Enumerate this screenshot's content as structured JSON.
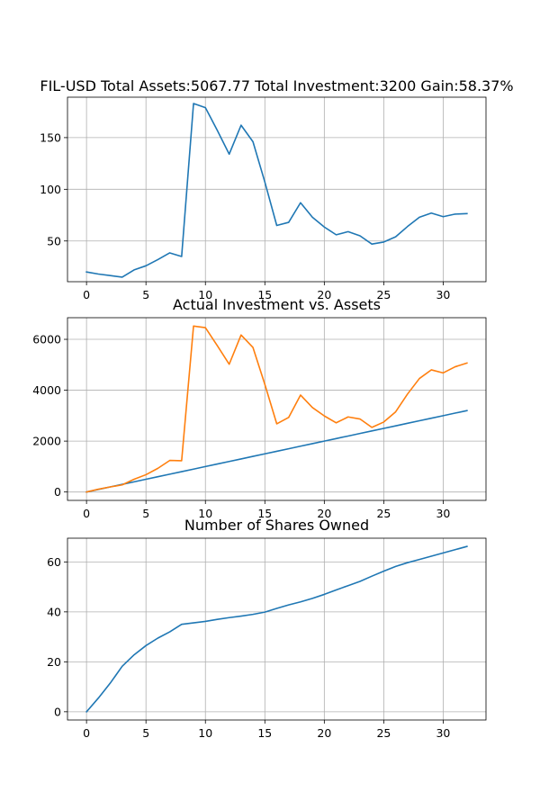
{
  "chart_data": [
    {
      "type": "line",
      "title": "FIL-USD Total Assets:5067.77  Total Investment:3200  Gain:58.37%",
      "xlabel": "",
      "ylabel": "",
      "xlim": [
        -1.6,
        33.6
      ],
      "ylim": [
        10.6,
        189.1
      ],
      "xticks": [
        0,
        5,
        10,
        15,
        20,
        25,
        30
      ],
      "yticks": [
        50,
        100,
        150
      ],
      "grid": true,
      "series": [
        {
          "color": "#1f77b4",
          "x": [
            0,
            1,
            2,
            3,
            4,
            5,
            6,
            7,
            8,
            9,
            10,
            11,
            12,
            13,
            14,
            15,
            16,
            17,
            18,
            19,
            20,
            21,
            22,
            23,
            24,
            25,
            26,
            27,
            28,
            29,
            30,
            31,
            32
          ],
          "values": [
            20,
            18,
            16.5,
            15,
            22,
            26,
            32,
            38.5,
            35,
            183,
            179,
            157,
            134,
            162,
            146,
            107,
            65,
            68,
            87,
            73,
            63.5,
            56,
            59,
            55,
            47,
            49,
            54,
            64,
            73,
            77,
            73.5,
            76,
            76.5
          ]
        }
      ]
    },
    {
      "type": "line",
      "title": "Actual Investment vs. Assets",
      "xlabel": "",
      "ylabel": "",
      "xlim": [
        -1.6,
        33.6
      ],
      "ylim": [
        -330,
        6850
      ],
      "xticks": [
        0,
        5,
        10,
        15,
        20,
        25,
        30
      ],
      "yticks": [
        0,
        2000,
        4000,
        6000
      ],
      "grid": true,
      "series": [
        {
          "color": "#1f77b4",
          "x": [
            0,
            1,
            2,
            3,
            4,
            5,
            6,
            7,
            8,
            9,
            10,
            11,
            12,
            13,
            14,
            15,
            16,
            17,
            18,
            19,
            20,
            21,
            22,
            23,
            24,
            25,
            26,
            27,
            28,
            29,
            30,
            31,
            32
          ],
          "values": [
            0,
            100,
            200,
            300,
            400,
            500,
            600,
            700,
            800,
            900,
            1000,
            1100,
            1200,
            1300,
            1400,
            1500,
            1600,
            1700,
            1800,
            1900,
            2000,
            2100,
            2200,
            2300,
            2400,
            2500,
            2600,
            2700,
            2800,
            2900,
            3000,
            3100,
            3200
          ]
        },
        {
          "color": "#ff7f0e",
          "x": [
            0,
            1,
            2,
            3,
            4,
            5,
            6,
            7,
            8,
            9,
            10,
            11,
            12,
            13,
            14,
            15,
            16,
            17,
            18,
            19,
            20,
            21,
            22,
            23,
            24,
            25,
            26,
            27,
            28,
            29,
            30,
            31,
            32
          ],
          "values": [
            0,
            110,
            200,
            280,
            500,
            680,
            930,
            1240,
            1230,
            6520,
            6460,
            5750,
            5020,
            6170,
            5680,
            4230,
            2680,
            2930,
            3810,
            3320,
            2990,
            2720,
            2950,
            2870,
            2540,
            2750,
            3150,
            3850,
            4460,
            4800,
            4680,
            4920,
            5068
          ]
        }
      ]
    },
    {
      "type": "line",
      "title": "Number of Shares Owned",
      "xlabel": "",
      "ylabel": "",
      "xlim": [
        -1.6,
        33.6
      ],
      "ylim": [
        -3.3,
        69.5
      ],
      "xticks": [
        0,
        5,
        10,
        15,
        20,
        25,
        30
      ],
      "yticks": [
        0,
        20,
        40,
        60
      ],
      "grid": true,
      "series": [
        {
          "color": "#1f77b4",
          "x": [
            0,
            1,
            2,
            3,
            4,
            5,
            6,
            7,
            8,
            9,
            10,
            11,
            12,
            13,
            14,
            15,
            16,
            17,
            18,
            19,
            20,
            21,
            22,
            23,
            24,
            25,
            26,
            27,
            28,
            29,
            30,
            31,
            32
          ],
          "values": [
            0,
            5.5,
            11.5,
            18.2,
            22.8,
            26.5,
            29.5,
            32,
            35,
            35.6,
            36.2,
            37,
            37.7,
            38.3,
            39,
            39.9,
            41.4,
            42.8,
            44,
            45.4,
            47,
            48.8,
            50.5,
            52.2,
            54.3,
            56.3,
            58.2,
            59.7,
            61,
            62.3,
            63.6,
            64.9,
            66.2
          ]
        }
      ]
    }
  ]
}
